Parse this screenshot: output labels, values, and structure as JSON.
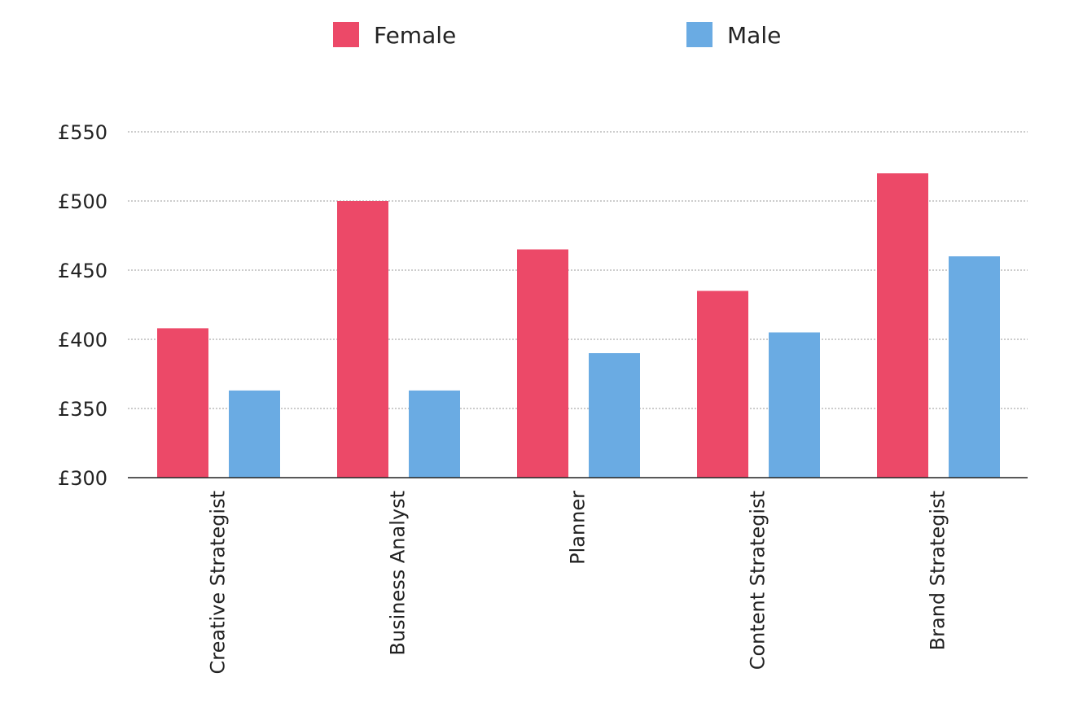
{
  "chart_data": {
    "type": "bar",
    "categories": [
      "Creative Strategist",
      "Business Analyst",
      "Planner",
      "Content Strategist",
      "Brand Strategist"
    ],
    "series": [
      {
        "name": "Female",
        "color": "#ec4968",
        "values": [
          408,
          500,
          465,
          435,
          520
        ]
      },
      {
        "name": "Male",
        "color": "#6aabe3",
        "values": [
          363,
          363,
          390,
          405,
          460
        ]
      }
    ],
    "y_ticks": [
      300,
      350,
      400,
      450,
      500,
      550
    ],
    "y_tick_prefix": "£",
    "ylim": [
      300,
      550
    ],
    "grid": true,
    "legend_position": "top-center"
  }
}
